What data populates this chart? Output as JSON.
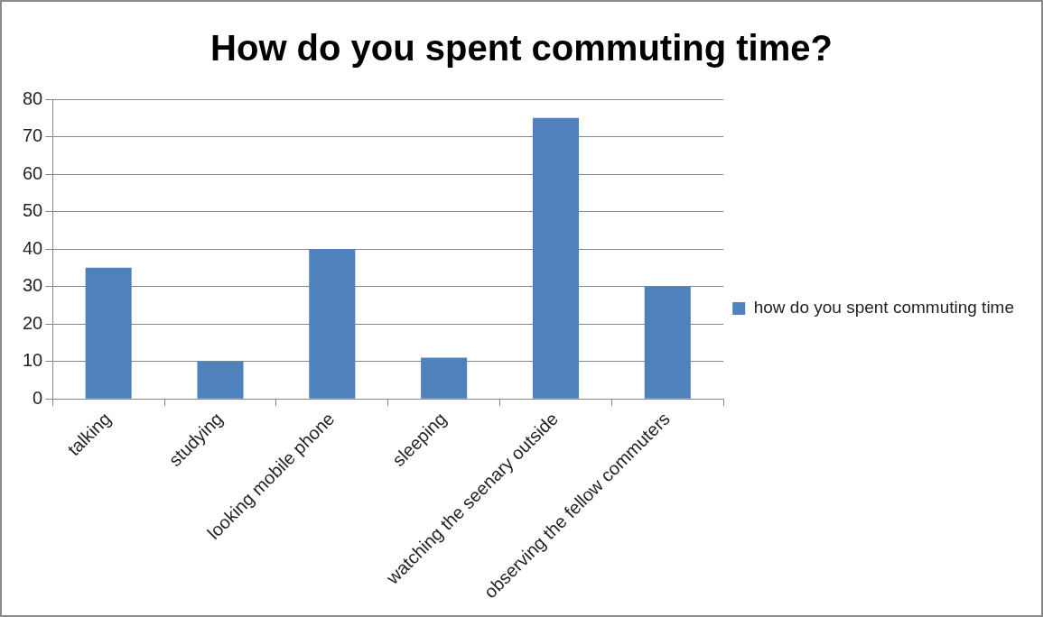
{
  "chart_data": {
    "type": "bar",
    "title": "How do you spent commuting time?",
    "categories": [
      "talking",
      "studying",
      "looking mobile phone",
      "sleeping",
      "watching the seenary outside",
      "observing the fellow commuters"
    ],
    "series": [
      {
        "name": "how do you spent commuting time",
        "color": "#4f81bd",
        "values": [
          35,
          10,
          40,
          11,
          75,
          30
        ]
      }
    ],
    "ylim": [
      0,
      80
    ],
    "yticks": [
      0,
      10,
      20,
      30,
      40,
      50,
      60,
      70,
      80
    ],
    "grid": "y",
    "legend": "right"
  }
}
